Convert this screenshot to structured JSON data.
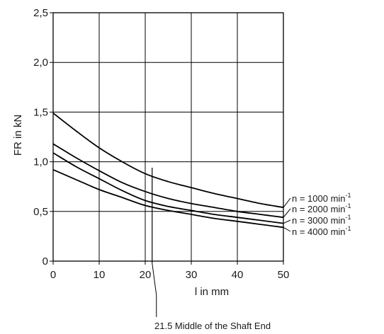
{
  "chart_data": {
    "type": "line",
    "xlabel": "l in mm",
    "ylabel": "FR in kN",
    "xlim": [
      0,
      50
    ],
    "ylim": [
      0,
      2.5
    ],
    "x_ticks": [
      0,
      10,
      20,
      30,
      40,
      50
    ],
    "x_tick_labels": [
      "0",
      "10",
      "20",
      "30",
      "40",
      "50"
    ],
    "y_ticks": [
      0,
      0.5,
      1.0,
      1.5,
      2.0,
      2.5
    ],
    "y_tick_labels": [
      "0",
      "0,5",
      "1,0",
      "1,5",
      "2,0",
      "2,5"
    ],
    "grid": true,
    "legend_position": "right",
    "series": [
      {
        "name": "n = 1000 min",
        "name_sup": "-1",
        "x": [
          0,
          5,
          10,
          15,
          20,
          25,
          30,
          35,
          40,
          45,
          50
        ],
        "y": [
          1.49,
          1.31,
          1.14,
          1.0,
          0.88,
          0.8,
          0.74,
          0.68,
          0.63,
          0.58,
          0.54
        ]
      },
      {
        "name": "n = 2000 min",
        "name_sup": "-1",
        "x": [
          0,
          5,
          10,
          15,
          20,
          25,
          30,
          35,
          40,
          45,
          50
        ],
        "y": [
          1.18,
          1.04,
          0.91,
          0.79,
          0.7,
          0.63,
          0.58,
          0.54,
          0.5,
          0.47,
          0.44
        ]
      },
      {
        "name": "n = 3000 min",
        "name_sup": "-1",
        "x": [
          0,
          5,
          10,
          15,
          20,
          25,
          30,
          35,
          40,
          45,
          50
        ],
        "y": [
          1.09,
          0.95,
          0.83,
          0.71,
          0.61,
          0.55,
          0.51,
          0.47,
          0.44,
          0.41,
          0.38
        ]
      },
      {
        "name": "n = 4000 min",
        "name_sup": "-1",
        "x": [
          0,
          5,
          10,
          15,
          20,
          25,
          30,
          35,
          40,
          45,
          50
        ],
        "y": [
          0.92,
          0.82,
          0.72,
          0.64,
          0.56,
          0.51,
          0.47,
          0.43,
          0.4,
          0.37,
          0.34
        ]
      }
    ],
    "annotations": [
      {
        "text": "21.5 Middle of the Shaft End",
        "x": 21.5,
        "y_top": 0.94
      }
    ]
  }
}
